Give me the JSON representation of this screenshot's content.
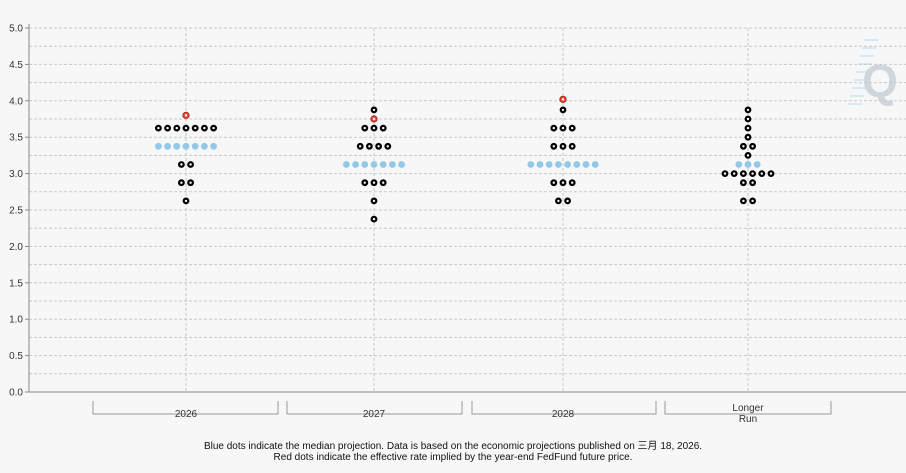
{
  "chart_data": {
    "type": "scatter",
    "categories": [
      {
        "id": "2026",
        "lines": [
          "2026"
        ]
      },
      {
        "id": "2027",
        "lines": [
          "2027"
        ]
      },
      {
        "id": "2028",
        "lines": [
          "2028"
        ]
      },
      {
        "id": "longer-run",
        "lines": [
          "Longer",
          "Run"
        ]
      }
    ],
    "ylim": [
      0,
      5.0
    ],
    "yticks": [
      "0.0",
      "0.5",
      "1.0",
      "1.5",
      "2.0",
      "2.5",
      "3.0",
      "3.5",
      "4.0",
      "4.5",
      "5.0"
    ],
    "grid": true,
    "series": [
      {
        "kind": "projection",
        "color": "#000000",
        "points": [
          {
            "category": "2026",
            "y": 3.625,
            "count": 7
          },
          {
            "category": "2026",
            "y": 3.125,
            "count": 2
          },
          {
            "category": "2026",
            "y": 2.875,
            "count": 2
          },
          {
            "category": "2026",
            "y": 2.625,
            "count": 1
          },
          {
            "category": "2027",
            "y": 3.875,
            "count": 1
          },
          {
            "category": "2027",
            "y": 3.625,
            "count": 3
          },
          {
            "category": "2027",
            "y": 3.375,
            "count": 4
          },
          {
            "category": "2027",
            "y": 2.875,
            "count": 3
          },
          {
            "category": "2027",
            "y": 2.625,
            "count": 1
          },
          {
            "category": "2027",
            "y": 2.375,
            "count": 1
          },
          {
            "category": "2028",
            "y": 3.875,
            "count": 1
          },
          {
            "category": "2028",
            "y": 3.625,
            "count": 3
          },
          {
            "category": "2028",
            "y": 3.375,
            "count": 3
          },
          {
            "category": "2028",
            "y": 2.875,
            "count": 3
          },
          {
            "category": "2028",
            "y": 2.625,
            "count": 2
          },
          {
            "category": "longer-run",
            "y": 3.875,
            "count": 1
          },
          {
            "category": "longer-run",
            "y": 3.75,
            "count": 1
          },
          {
            "category": "longer-run",
            "y": 3.625,
            "count": 1
          },
          {
            "category": "longer-run",
            "y": 3.5,
            "count": 1
          },
          {
            "category": "longer-run",
            "y": 3.375,
            "count": 2
          },
          {
            "category": "longer-run",
            "y": 3.25,
            "count": 1
          },
          {
            "category": "longer-run",
            "y": 3.0,
            "count": 6
          },
          {
            "category": "longer-run",
            "y": 2.875,
            "count": 2
          },
          {
            "category": "longer-run",
            "y": 2.625,
            "count": 2
          }
        ]
      },
      {
        "kind": "median",
        "color": "#93c9e8",
        "points": [
          {
            "category": "2026",
            "y": 3.375,
            "count": 7
          },
          {
            "category": "2027",
            "y": 3.125,
            "count": 7
          },
          {
            "category": "2028",
            "y": 3.125,
            "count": 8
          },
          {
            "category": "longer-run",
            "y": 3.125,
            "count": 3
          }
        ]
      },
      {
        "kind": "futures",
        "color": "#e8473b",
        "points": [
          {
            "category": "2026",
            "y": 3.8
          },
          {
            "category": "2027",
            "y": 3.75
          },
          {
            "category": "2028",
            "y": 4.02
          }
        ]
      }
    ]
  },
  "notes": [
    "Blue dots indicate the median projection. Data is based on the economic projections published on 三月 18, 2026.",
    "Red dots indicate the effective rate implied by the year-end FedFund future price."
  ],
  "watermark": {
    "letter": "Q",
    "color": "#cfd6dc",
    "accent": "#d6e9f6"
  }
}
